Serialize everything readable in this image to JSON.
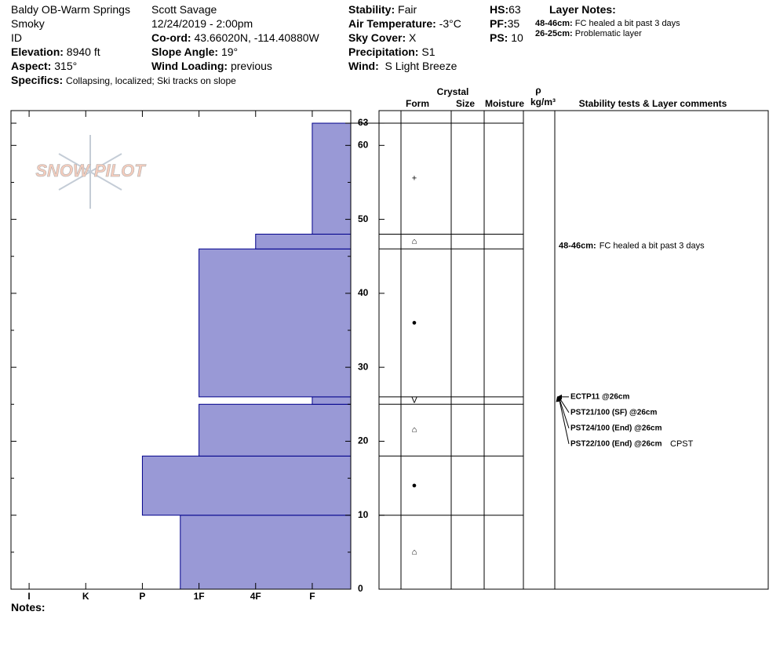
{
  "header": {
    "location": [
      "Baldy OB-Warm Springs",
      "Smoky",
      "ID"
    ],
    "elevation": {
      "label": "Elevation:",
      "value": "8940 ft"
    },
    "aspect": {
      "label": "Aspect:",
      "value": "315°"
    },
    "specifics": {
      "label": "Specifics:",
      "value": "Collapsing, localized;  Ski tracks on slope"
    },
    "observer": "Scott Savage",
    "datetime": "12/24/2019 - 2:00pm",
    "coord": {
      "label": "Co-ord:",
      "value": "43.66020N, -114.40880W"
    },
    "slope_angle": {
      "label": "Slope Angle:",
      "value": "19°"
    },
    "wind_loading": {
      "label": "Wind Loading:",
      "value": "previous"
    },
    "stability": {
      "label": "Stability:",
      "value": "Fair"
    },
    "air_temperature": {
      "label": "Air Temperature:",
      "value": "-3°C"
    },
    "sky_cover": {
      "label": "Sky Cover:",
      "value": "X"
    },
    "precipitation": {
      "label": "Precipitation:",
      "value": "S1"
    },
    "wind": {
      "label": "Wind:",
      "value": "S Light Breeze"
    },
    "hs": {
      "label": "HS:",
      "value": "63"
    },
    "pf": {
      "label": "PF:",
      "value": "35"
    },
    "ps": {
      "label": "PS:",
      "value": "10"
    },
    "layer_notes_title": "Layer Notes:",
    "layer_notes": [
      {
        "label": "48-46cm:",
        "text": "FC healed a bit past 3 days"
      },
      {
        "label": "26-25cm:",
        "text": "Problematic layer"
      }
    ]
  },
  "logo": "SNOW PILOT",
  "notes_label": "Notes:",
  "chart_data": {
    "type": "hardness_profile",
    "layers": [
      {
        "bottom": 0,
        "top": 10,
        "hardness": 3.33,
        "form": "⌂"
      },
      {
        "bottom": 10,
        "top": 18,
        "hardness": 4,
        "form": "●"
      },
      {
        "bottom": 18,
        "top": 25,
        "hardness": 3,
        "form": "⌂"
      },
      {
        "bottom": 25,
        "top": 26,
        "hardness": 1,
        "form": "V"
      },
      {
        "bottom": 26,
        "top": 46,
        "hardness": 3,
        "form": "●"
      },
      {
        "bottom": 46,
        "top": 48,
        "hardness": 2,
        "form": "⌂"
      },
      {
        "bottom": 48,
        "top": 63,
        "hardness": 1,
        "form": "+"
      }
    ],
    "color": "#9999d6",
    "edge_color": "#00008b",
    "xlim": [
      0.32,
      6.32
    ],
    "x_reversed": true,
    "xticks": [
      {
        "value": 6,
        "label": "I"
      },
      {
        "value": 5,
        "label": "K"
      },
      {
        "value": 4,
        "label": "P"
      },
      {
        "value": 3,
        "label": "1F"
      },
      {
        "value": 2,
        "label": "4F"
      },
      {
        "value": 1,
        "label": "F"
      }
    ],
    "ylim": [
      0,
      64.7
    ],
    "yticks": [
      0,
      10,
      20,
      30,
      40,
      50,
      60,
      63
    ],
    "minor_yticks": [
      5,
      15,
      25,
      35,
      45,
      55
    ],
    "columns": {
      "crystal": "Crystal",
      "form": "Form",
      "size": "Size",
      "moisture": "Moisture",
      "rho": "ρ",
      "density_unit": "kg/m³",
      "comments": "Stability tests & Layer comments"
    },
    "layer_comments": [
      {
        "label": "48-46cm:",
        "text": "FC healed a bit past 3 days",
        "depth": 46
      }
    ],
    "tests": {
      "depth": 26,
      "items": [
        "ECTP11 @26cm",
        "PST21/100 (SF) @26cm",
        "PST24/100 (End) @26cm",
        "PST22/100 (End) @26cm"
      ],
      "note": "CPST"
    }
  }
}
